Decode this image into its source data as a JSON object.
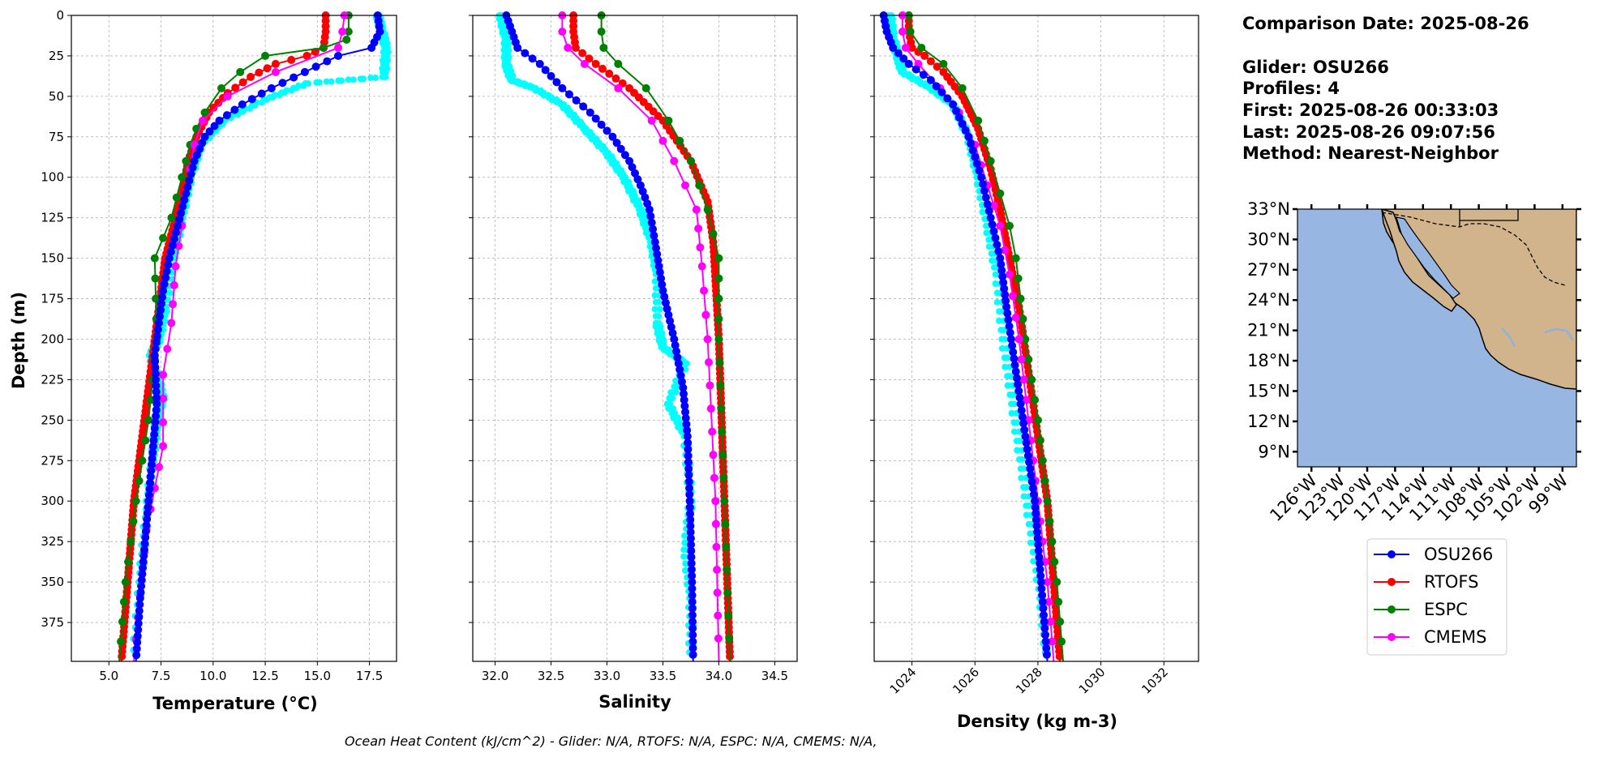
{
  "info": {
    "lines": [
      "Comparison Date: 2025-08-26",
      "",
      "Glider: OSU266",
      "Profiles: 4",
      "First: 2025-08-26 00:33:03",
      "Last: 2025-08-26 09:07:56",
      "Method: Nearest-Neighbor"
    ]
  },
  "footer": "Ocean Heat Content (kJ/cm^2) - Glider: N/A,  RTOFS: N/A,  ESPC: N/A,  CMEMS: N/A,",
  "colors": {
    "OSU266": "#0000ff",
    "OSU266_raw": "#00ffff",
    "RTOFS": "#ff0000",
    "ESPC": "#008000",
    "CMEMS": "#ff00ff",
    "ocean": "#97b6e1",
    "land": "#d2b48c",
    "grid": "#b0b0b0"
  },
  "chart_data": [
    {
      "type": "line",
      "xlabel": "Temperature (°C)",
      "ylabel": "Depth (m)",
      "xlim": [
        3.2,
        18.8
      ],
      "ylim": [
        399,
        0
      ],
      "xticks": [
        5.0,
        7.5,
        10.0,
        12.5,
        15.0,
        17.5
      ],
      "xtick_labels": [
        "5.0",
        "7.5",
        "10.0",
        "12.5",
        "15.0",
        "17.5"
      ],
      "yticks": [
        0,
        25,
        50,
        75,
        100,
        125,
        150,
        175,
        200,
        225,
        250,
        275,
        300,
        325,
        350,
        375
      ],
      "ytick_labels": [
        "0",
        "25",
        "50",
        "75",
        "100",
        "125",
        "150",
        "175",
        "200",
        "225",
        "250",
        "275",
        "300",
        "325",
        "350",
        "375"
      ],
      "grid": true,
      "raw": {
        "name": "OSU266",
        "x": [
          17.9,
          18.1,
          18.3,
          18.2,
          14.5,
          12.5,
          10.5,
          9.4,
          8.9,
          8.5,
          8.1,
          7.7,
          7.4,
          7.0,
          7.6,
          7.3,
          7.1,
          6.8,
          6.5,
          6.2
        ],
        "y": [
          0,
          10,
          20,
          38,
          42,
          52,
          65,
          80,
          100,
          125,
          150,
          180,
          200,
          210,
          235,
          250,
          275,
          310,
          350,
          399
        ]
      },
      "series": [
        {
          "name": "OSU266",
          "x": [
            17.9,
            18.0,
            17.6,
            16.0,
            14.4,
            12.8,
            11.4,
            10.3,
            9.6,
            9.1,
            8.7,
            8.3,
            7.9,
            7.6,
            7.4,
            7.2,
            7.3,
            7.1,
            6.9,
            6.7,
            6.5,
            6.3
          ],
          "y": [
            0,
            10,
            20,
            25,
            35,
            45,
            55,
            65,
            75,
            90,
            110,
            130,
            150,
            170,
            190,
            210,
            240,
            270,
            300,
            330,
            360,
            399
          ]
        },
        {
          "name": "RTOFS",
          "x": [
            15.4,
            15.4,
            15.3,
            14.5,
            13.0,
            11.8,
            10.7,
            9.8,
            9.2,
            8.8,
            8.5,
            8.1,
            7.7,
            7.4,
            7.0,
            6.6,
            6.2,
            5.9,
            5.6
          ],
          "y": [
            0,
            10,
            20,
            25,
            30,
            38,
            48,
            60,
            75,
            90,
            110,
            130,
            150,
            180,
            220,
            260,
            300,
            350,
            399
          ]
        },
        {
          "name": "ESPC",
          "x": [
            16.5,
            16.5,
            16.4,
            15.3,
            12.5,
            11.3,
            10.4,
            9.6,
            9.2,
            8.9,
            8.7,
            8.5,
            8.0,
            7.2,
            7.3,
            6.9,
            6.3,
            5.8,
            5.5
          ],
          "y": [
            0,
            10,
            15,
            20,
            25,
            35,
            45,
            60,
            70,
            80,
            90,
            100,
            125,
            150,
            200,
            250,
            300,
            350,
            399
          ]
        },
        {
          "name": "CMEMS",
          "x": [
            16.3,
            16.2,
            16.0,
            13.0,
            10.7,
            9.5,
            9.1,
            8.9,
            8.7,
            8.5,
            8.2,
            8.0,
            7.6,
            7.6,
            6.8,
            6.2
          ],
          "y": [
            0,
            10,
            20,
            35,
            50,
            65,
            80,
            95,
            110,
            130,
            155,
            190,
            222,
            266,
            318,
            399
          ]
        }
      ]
    },
    {
      "type": "line",
      "xlabel": "Salinity",
      "xlim": [
        31.8,
        34.7
      ],
      "ylim": [
        399,
        0
      ],
      "xticks": [
        32.0,
        32.5,
        33.0,
        33.5,
        34.0,
        34.5
      ],
      "xtick_labels": [
        "32.0",
        "32.5",
        "33.0",
        "33.5",
        "34.0",
        "34.5"
      ],
      "yticks": [
        0,
        25,
        50,
        75,
        100,
        125,
        150,
        175,
        200,
        225,
        250,
        275,
        300,
        325,
        350,
        375
      ],
      "grid": true,
      "raw": {
        "name": "OSU266",
        "x": [
          32.05,
          32.1,
          32.1,
          32.15,
          32.35,
          32.6,
          32.8,
          33.0,
          33.15,
          33.3,
          33.4,
          33.45,
          33.45,
          33.5,
          33.7,
          33.55,
          33.7,
          33.75,
          33.7,
          33.75,
          33.75
        ],
        "y": [
          0,
          15,
          30,
          40,
          45,
          55,
          70,
          85,
          100,
          120,
          140,
          160,
          190,
          205,
          215,
          240,
          260,
          300,
          330,
          360,
          399
        ]
      },
      "series": [
        {
          "name": "OSU266",
          "x": [
            32.1,
            32.15,
            32.2,
            32.4,
            32.6,
            32.85,
            33.05,
            33.2,
            33.3,
            33.38,
            33.43,
            33.5,
            33.6,
            33.68,
            33.72,
            33.74,
            33.76,
            33.77
          ],
          "y": [
            0,
            10,
            20,
            30,
            45,
            60,
            75,
            90,
            105,
            120,
            140,
            170,
            200,
            230,
            260,
            300,
            350,
            399
          ]
        },
        {
          "name": "RTOFS",
          "x": [
            32.7,
            32.7,
            32.72,
            32.9,
            33.2,
            33.5,
            33.75,
            33.9,
            33.95,
            34.0,
            34.05,
            34.1
          ],
          "y": [
            0,
            10,
            20,
            30,
            45,
            65,
            90,
            115,
            140,
            200,
            300,
            399
          ]
        },
        {
          "name": "ESPC",
          "x": [
            32.95,
            32.95,
            32.97,
            33.1,
            33.35,
            33.55,
            33.75,
            33.9,
            34.0,
            34.0,
            34.05,
            34.1
          ],
          "y": [
            0,
            10,
            20,
            30,
            45,
            65,
            90,
            120,
            150,
            200,
            300,
            399
          ]
        },
        {
          "name": "CMEMS",
          "x": [
            32.6,
            32.6,
            32.65,
            32.8,
            33.1,
            33.4,
            33.6,
            33.8,
            33.85,
            33.9,
            33.97,
            34.0
          ],
          "y": [
            0,
            10,
            20,
            30,
            45,
            65,
            90,
            120,
            155,
            200,
            300,
            399
          ]
        }
      ]
    },
    {
      "type": "line",
      "xlabel": "Density (kg m-3)",
      "xlim": [
        1022.8,
        1033.1
      ],
      "ylim": [
        399,
        0
      ],
      "xticks": [
        1024,
        1026,
        1028,
        1030,
        1032
      ],
      "xtick_labels": [
        "1024",
        "1026",
        "1028",
        "1030",
        "1032"
      ],
      "yticks": [
        0,
        25,
        50,
        75,
        100,
        125,
        150,
        175,
        200,
        225,
        250,
        275,
        300,
        325,
        350,
        375
      ],
      "grid": true,
      "raw": {
        "name": "OSU266",
        "x": [
          1023.3,
          1023.4,
          1023.55,
          1023.7,
          1024.6,
          1025.3,
          1025.8,
          1026.1,
          1026.4,
          1026.7,
          1026.9,
          1027.2,
          1027.5,
          1027.8,
          1028.1,
          1028.3
        ],
        "y": [
          0,
          15,
          25,
          35,
          45,
          55,
          75,
          100,
          130,
          160,
          200,
          240,
          280,
          320,
          360,
          399
        ]
      },
      "series": [
        {
          "name": "OSU266",
          "x": [
            1023.1,
            1023.2,
            1023.4,
            1023.9,
            1024.6,
            1025.3,
            1025.8,
            1026.2,
            1026.5,
            1026.8,
            1027.0,
            1027.3,
            1027.6,
            1027.9,
            1028.1,
            1028.3
          ],
          "y": [
            0,
            10,
            20,
            30,
            40,
            55,
            75,
            100,
            125,
            150,
            180,
            220,
            260,
            300,
            350,
            399
          ]
        },
        {
          "name": "RTOFS",
          "x": [
            1023.9,
            1023.9,
            1024.0,
            1024.4,
            1025.0,
            1025.6,
            1026.1,
            1026.5,
            1026.8,
            1027.1,
            1027.4,
            1027.7,
            1028.0,
            1028.3,
            1028.5,
            1028.7
          ],
          "y": [
            0,
            10,
            20,
            25,
            35,
            50,
            70,
            95,
            120,
            150,
            180,
            220,
            260,
            300,
            350,
            399
          ]
        },
        {
          "name": "ESPC",
          "x": [
            1023.9,
            1023.95,
            1024.3,
            1025.0,
            1025.6,
            1026.1,
            1026.5,
            1026.8,
            1027.1,
            1027.3,
            1027.6,
            1028.0,
            1028.3,
            1028.6,
            1028.8
          ],
          "y": [
            0,
            10,
            20,
            30,
            45,
            65,
            90,
            110,
            130,
            150,
            200,
            250,
            300,
            350,
            399
          ]
        },
        {
          "name": "CMEMS",
          "x": [
            1023.7,
            1023.7,
            1023.8,
            1024.2,
            1024.9,
            1025.5,
            1026.0,
            1026.4,
            1026.8,
            1027.1,
            1027.4,
            1027.7,
            1028.0,
            1028.3,
            1028.5
          ],
          "y": [
            0,
            10,
            20,
            30,
            45,
            60,
            80,
            105,
            130,
            160,
            200,
            250,
            300,
            350,
            399
          ]
        }
      ]
    }
  ],
  "map": {
    "lon_range": [
      -127.5,
      -97.5
    ],
    "lat_range": [
      7.5,
      33.0
    ],
    "lon_ticks": [
      -126,
      -123,
      -120,
      -117,
      -114,
      -111,
      -108,
      -105,
      -102,
      -99
    ],
    "lon_labels": [
      "126°W",
      "123°W",
      "120°W",
      "117°W",
      "114°W",
      "111°W",
      "108°W",
      "105°W",
      "102°W",
      "99°W"
    ],
    "lat_ticks": [
      33,
      30,
      27,
      24,
      21,
      18,
      15,
      12,
      9
    ],
    "lat_labels": [
      "33°N",
      "30°N",
      "27°N",
      "24°N",
      "21°N",
      "18°N",
      "15°N",
      "12°N",
      "9°N"
    ]
  },
  "legend": {
    "placement": "below-map",
    "items": [
      "OSU266",
      "RTOFS",
      "ESPC",
      "CMEMS"
    ]
  }
}
